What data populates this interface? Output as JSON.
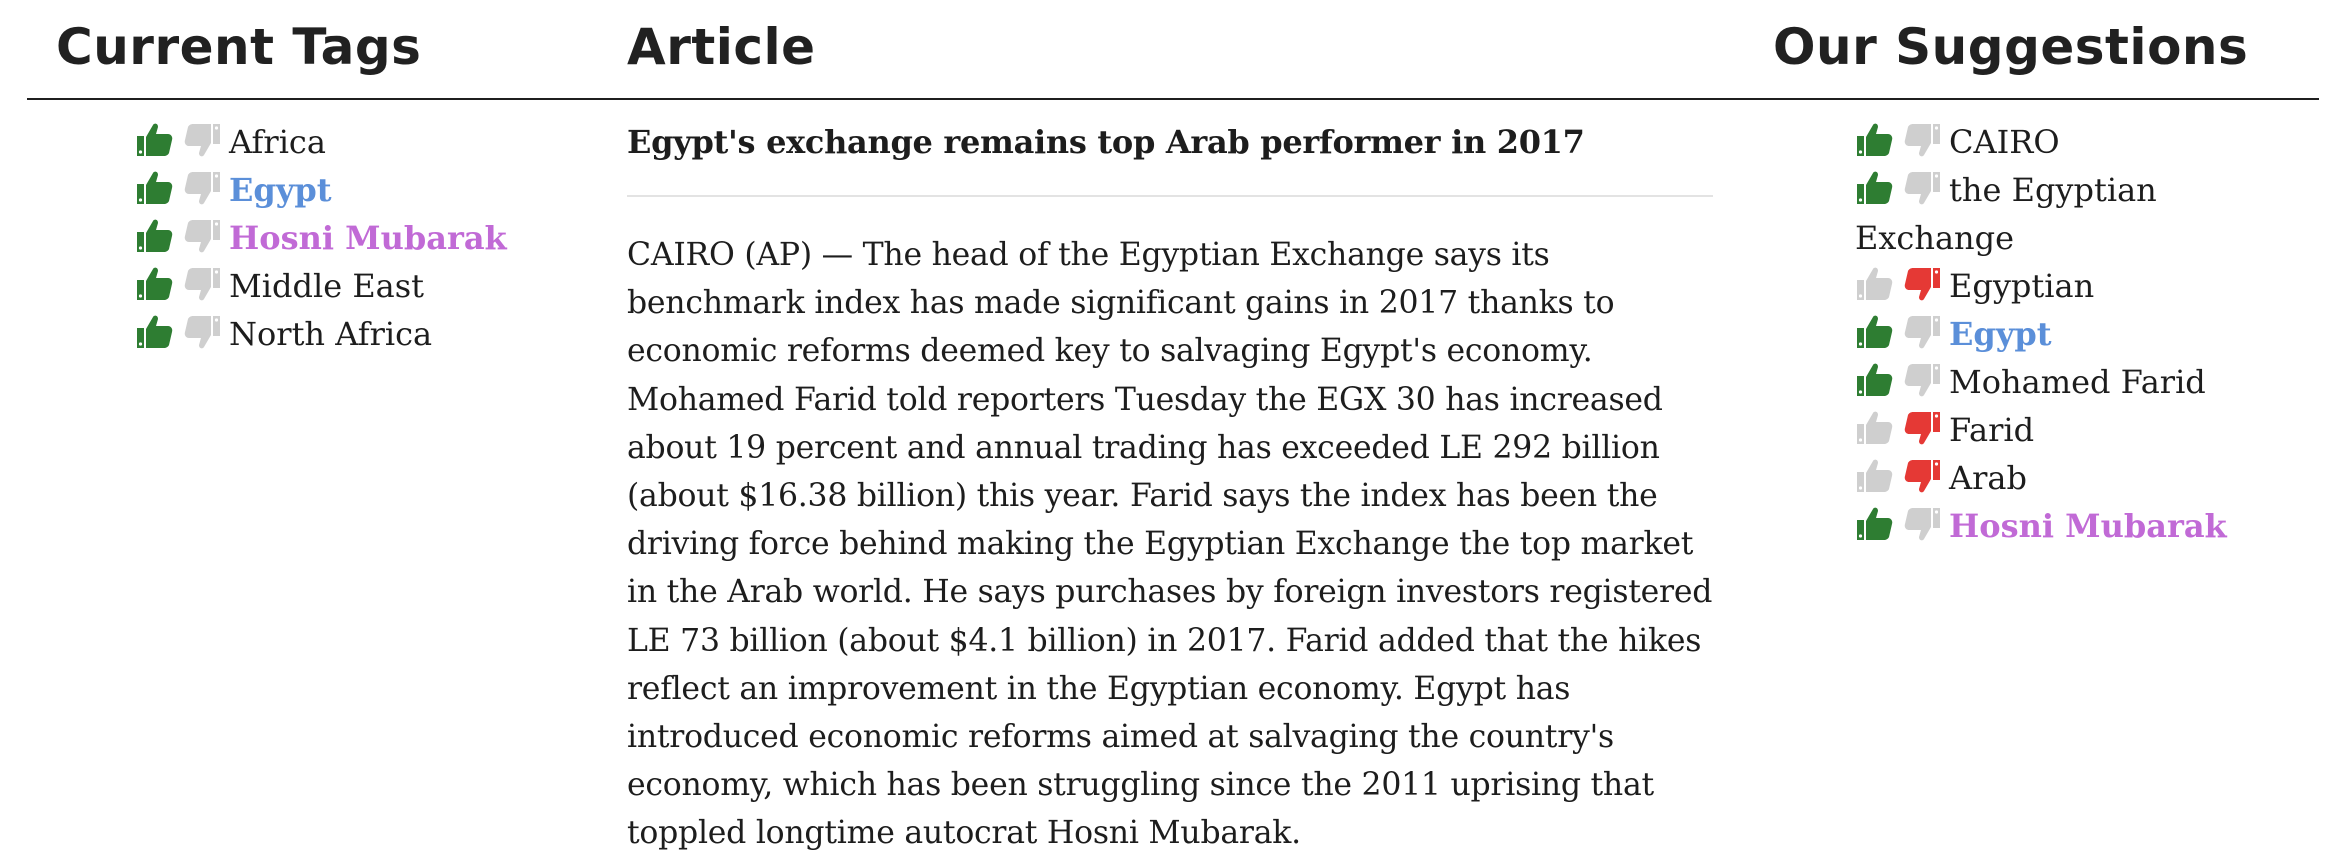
{
  "headers": {
    "current_tags": "Current Tags",
    "article": "Article",
    "suggestions": "Our Suggestions"
  },
  "colors": {
    "up_active": "#2e7d32",
    "down_active": "#e53935",
    "inactive": "#cfcfcf",
    "link_blue": "#5b8fd9",
    "link_purple": "#c16ad6"
  },
  "current_tags": [
    {
      "label": "Africa",
      "up": true,
      "down": false,
      "link": ""
    },
    {
      "label": "Egypt",
      "up": true,
      "down": false,
      "link": "blue"
    },
    {
      "label": "Hosni Mubarak",
      "up": true,
      "down": false,
      "link": "purple"
    },
    {
      "label": "Middle East",
      "up": true,
      "down": false,
      "link": ""
    },
    {
      "label": "North Africa",
      "up": true,
      "down": false,
      "link": ""
    }
  ],
  "article": {
    "title": "Egypt's exchange remains top Arab performer in 2017",
    "body": "CAIRO (AP) — The head of the Egyptian Exchange says its benchmark index has made significant gains in 2017 thanks to economic reforms deemed key to salvaging Egypt's economy. Mohamed Farid told reporters Tuesday the EGX 30 has increased about 19 percent and annual trading has exceeded LE 292 billion (about $16.38 billion) this year. Farid says the index has been the driving force behind making the Egyptian Exchange the top market in the Arab world. He says purchases by foreign investors registered LE 73 billion (about $4.1 billion) in 2017. Farid added that the hikes reflect an improvement in the Egyptian economy. Egypt has introduced economic reforms aimed at salvaging the country's economy, which has been struggling since the 2011 uprising that toppled longtime autocrat Hosni Mubarak."
  },
  "suggestions": [
    {
      "label": "CAIRO",
      "up": true,
      "down": false,
      "link": ""
    },
    {
      "label": "the Egyptian Exchange",
      "up": true,
      "down": false,
      "link": ""
    },
    {
      "label": "Egyptian",
      "up": false,
      "down": true,
      "link": ""
    },
    {
      "label": "Egypt",
      "up": true,
      "down": false,
      "link": "blue"
    },
    {
      "label": "Mohamed Farid",
      "up": true,
      "down": false,
      "link": ""
    },
    {
      "label": "Farid",
      "up": false,
      "down": true,
      "link": ""
    },
    {
      "label": "Arab",
      "up": false,
      "down": true,
      "link": ""
    },
    {
      "label": "Hosni Mubarak",
      "up": true,
      "down": false,
      "link": "purple"
    }
  ]
}
